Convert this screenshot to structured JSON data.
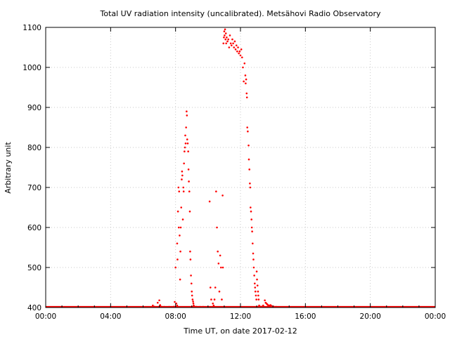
{
  "chart_data": {
    "type": "scatter",
    "title": "Total UV radiation intensity (uncalibrated). Metsähovi Radio Observatory",
    "xlabel": "Time UT, on date 2017-02-12",
    "ylabel": "Arbitrary unit",
    "x_unit": "hours UT",
    "xlim": [
      0,
      24
    ],
    "ylim": [
      400,
      1100
    ],
    "x_ticks": [
      {
        "value": 0,
        "label": "00:00"
      },
      {
        "value": 4,
        "label": "04:00"
      },
      {
        "value": 8,
        "label": "08:00"
      },
      {
        "value": 12,
        "label": "12:00"
      },
      {
        "value": 16,
        "label": "16:00"
      },
      {
        "value": 20,
        "label": "20:00"
      },
      {
        "value": 24,
        "label": "00:00"
      }
    ],
    "y_ticks": [
      {
        "value": 400,
        "label": "400"
      },
      {
        "value": 500,
        "label": "500"
      },
      {
        "value": 600,
        "label": "600"
      },
      {
        "value": 700,
        "label": "700"
      },
      {
        "value": 800,
        "label": "800"
      },
      {
        "value": 900,
        "label": "900"
      },
      {
        "value": 1000,
        "label": "1000"
      },
      {
        "value": 1100,
        "label": "1100"
      }
    ],
    "grid": true,
    "colors": {
      "series": "#ff0000",
      "grid": "#c8c8c8",
      "axis": "#000000"
    },
    "series": [
      {
        "name": "",
        "baseline": {
          "x_start": 0,
          "x_end": 24,
          "y": 400
        },
        "x": [
          6.6,
          6.7,
          6.9,
          7.0,
          7.05,
          7.1,
          7.15,
          7.3,
          7.6,
          7.9,
          7.95,
          8.0,
          8.05,
          8.1,
          8.1,
          8.12,
          8.15,
          8.18,
          8.2,
          8.22,
          8.25,
          8.28,
          8.3,
          8.32,
          8.35,
          8.38,
          8.4,
          8.42,
          8.45,
          8.48,
          8.5,
          8.52,
          8.55,
          8.58,
          8.6,
          8.62,
          8.65,
          8.68,
          8.7,
          8.72,
          8.75,
          8.78,
          8.8,
          8.82,
          8.85,
          8.88,
          8.9,
          8.92,
          8.95,
          8.98,
          9.0,
          9.02,
          9.05,
          9.08,
          9.1,
          9.12,
          9.15,
          9.2,
          9.25,
          9.3,
          9.5,
          9.7,
          10.1,
          10.15,
          10.2,
          10.3,
          10.35,
          10.4,
          10.45,
          10.5,
          10.55,
          10.6,
          10.65,
          10.7,
          10.75,
          10.8,
          10.85,
          10.9,
          10.92,
          10.95,
          10.98,
          11.0,
          11.02,
          11.05,
          11.08,
          11.1,
          11.12,
          11.15,
          11.2,
          11.25,
          11.3,
          11.35,
          11.4,
          11.45,
          11.5,
          11.55,
          11.6,
          11.65,
          11.7,
          11.75,
          11.8,
          11.85,
          11.9,
          11.95,
          12.0,
          12.05,
          12.1,
          12.15,
          12.2,
          12.25,
          12.3,
          12.32,
          12.35,
          12.38,
          12.4,
          12.42,
          12.45,
          12.5,
          12.52,
          12.55,
          12.58,
          12.6,
          12.62,
          12.65,
          12.68,
          12.7,
          12.72,
          12.75,
          12.78,
          12.8,
          12.82,
          12.85,
          12.88,
          12.9,
          12.92,
          12.95,
          12.98,
          13.0,
          13.02,
          13.05,
          13.08,
          13.1,
          13.12,
          13.15,
          13.2,
          13.25,
          13.3,
          13.35,
          13.4,
          13.5,
          13.55,
          13.6,
          13.65,
          13.7,
          13.75,
          13.8,
          13.85,
          13.9,
          14.0,
          14.05,
          14.1,
          14.2
        ],
        "y": [
          405,
          402,
          412,
          418,
          406,
          402,
          401,
          401,
          401,
          402,
          414,
          500,
          410,
          405,
          560,
          520,
          640,
          700,
          600,
          690,
          580,
          470,
          540,
          600,
          650,
          720,
          740,
          730,
          620,
          700,
          690,
          760,
          790,
          800,
          830,
          810,
          850,
          890,
          880,
          820,
          810,
          790,
          745,
          715,
          690,
          640,
          540,
          520,
          480,
          460,
          440,
          430,
          420,
          415,
          410,
          405,
          402,
          401,
          401,
          401,
          401,
          401,
          665,
          450,
          420,
          410,
          405,
          420,
          450,
          690,
          600,
          540,
          510,
          440,
          530,
          500,
          420,
          680,
          500,
          1060,
          1075,
          1090,
          1080,
          1095,
          1070,
          1085,
          1060,
          1075,
          1065,
          1070,
          1050,
          1080,
          1060,
          1055,
          1070,
          1060,
          1050,
          1065,
          1045,
          1055,
          1040,
          1050,
          1035,
          1040,
          1030,
          1045,
          1025,
          1000,
          965,
          1010,
          980,
          960,
          970,
          935,
          925,
          850,
          840,
          805,
          770,
          745,
          710,
          700,
          650,
          640,
          620,
          600,
          590,
          560,
          535,
          520,
          500,
          480,
          460,
          450,
          440,
          430,
          420,
          490,
          470,
          455,
          440,
          430,
          420,
          405,
          402,
          401,
          402,
          401,
          405,
          418,
          412,
          410,
          408,
          406,
          404,
          405,
          406,
          404,
          403,
          401,
          401,
          401
        ]
      }
    ]
  }
}
